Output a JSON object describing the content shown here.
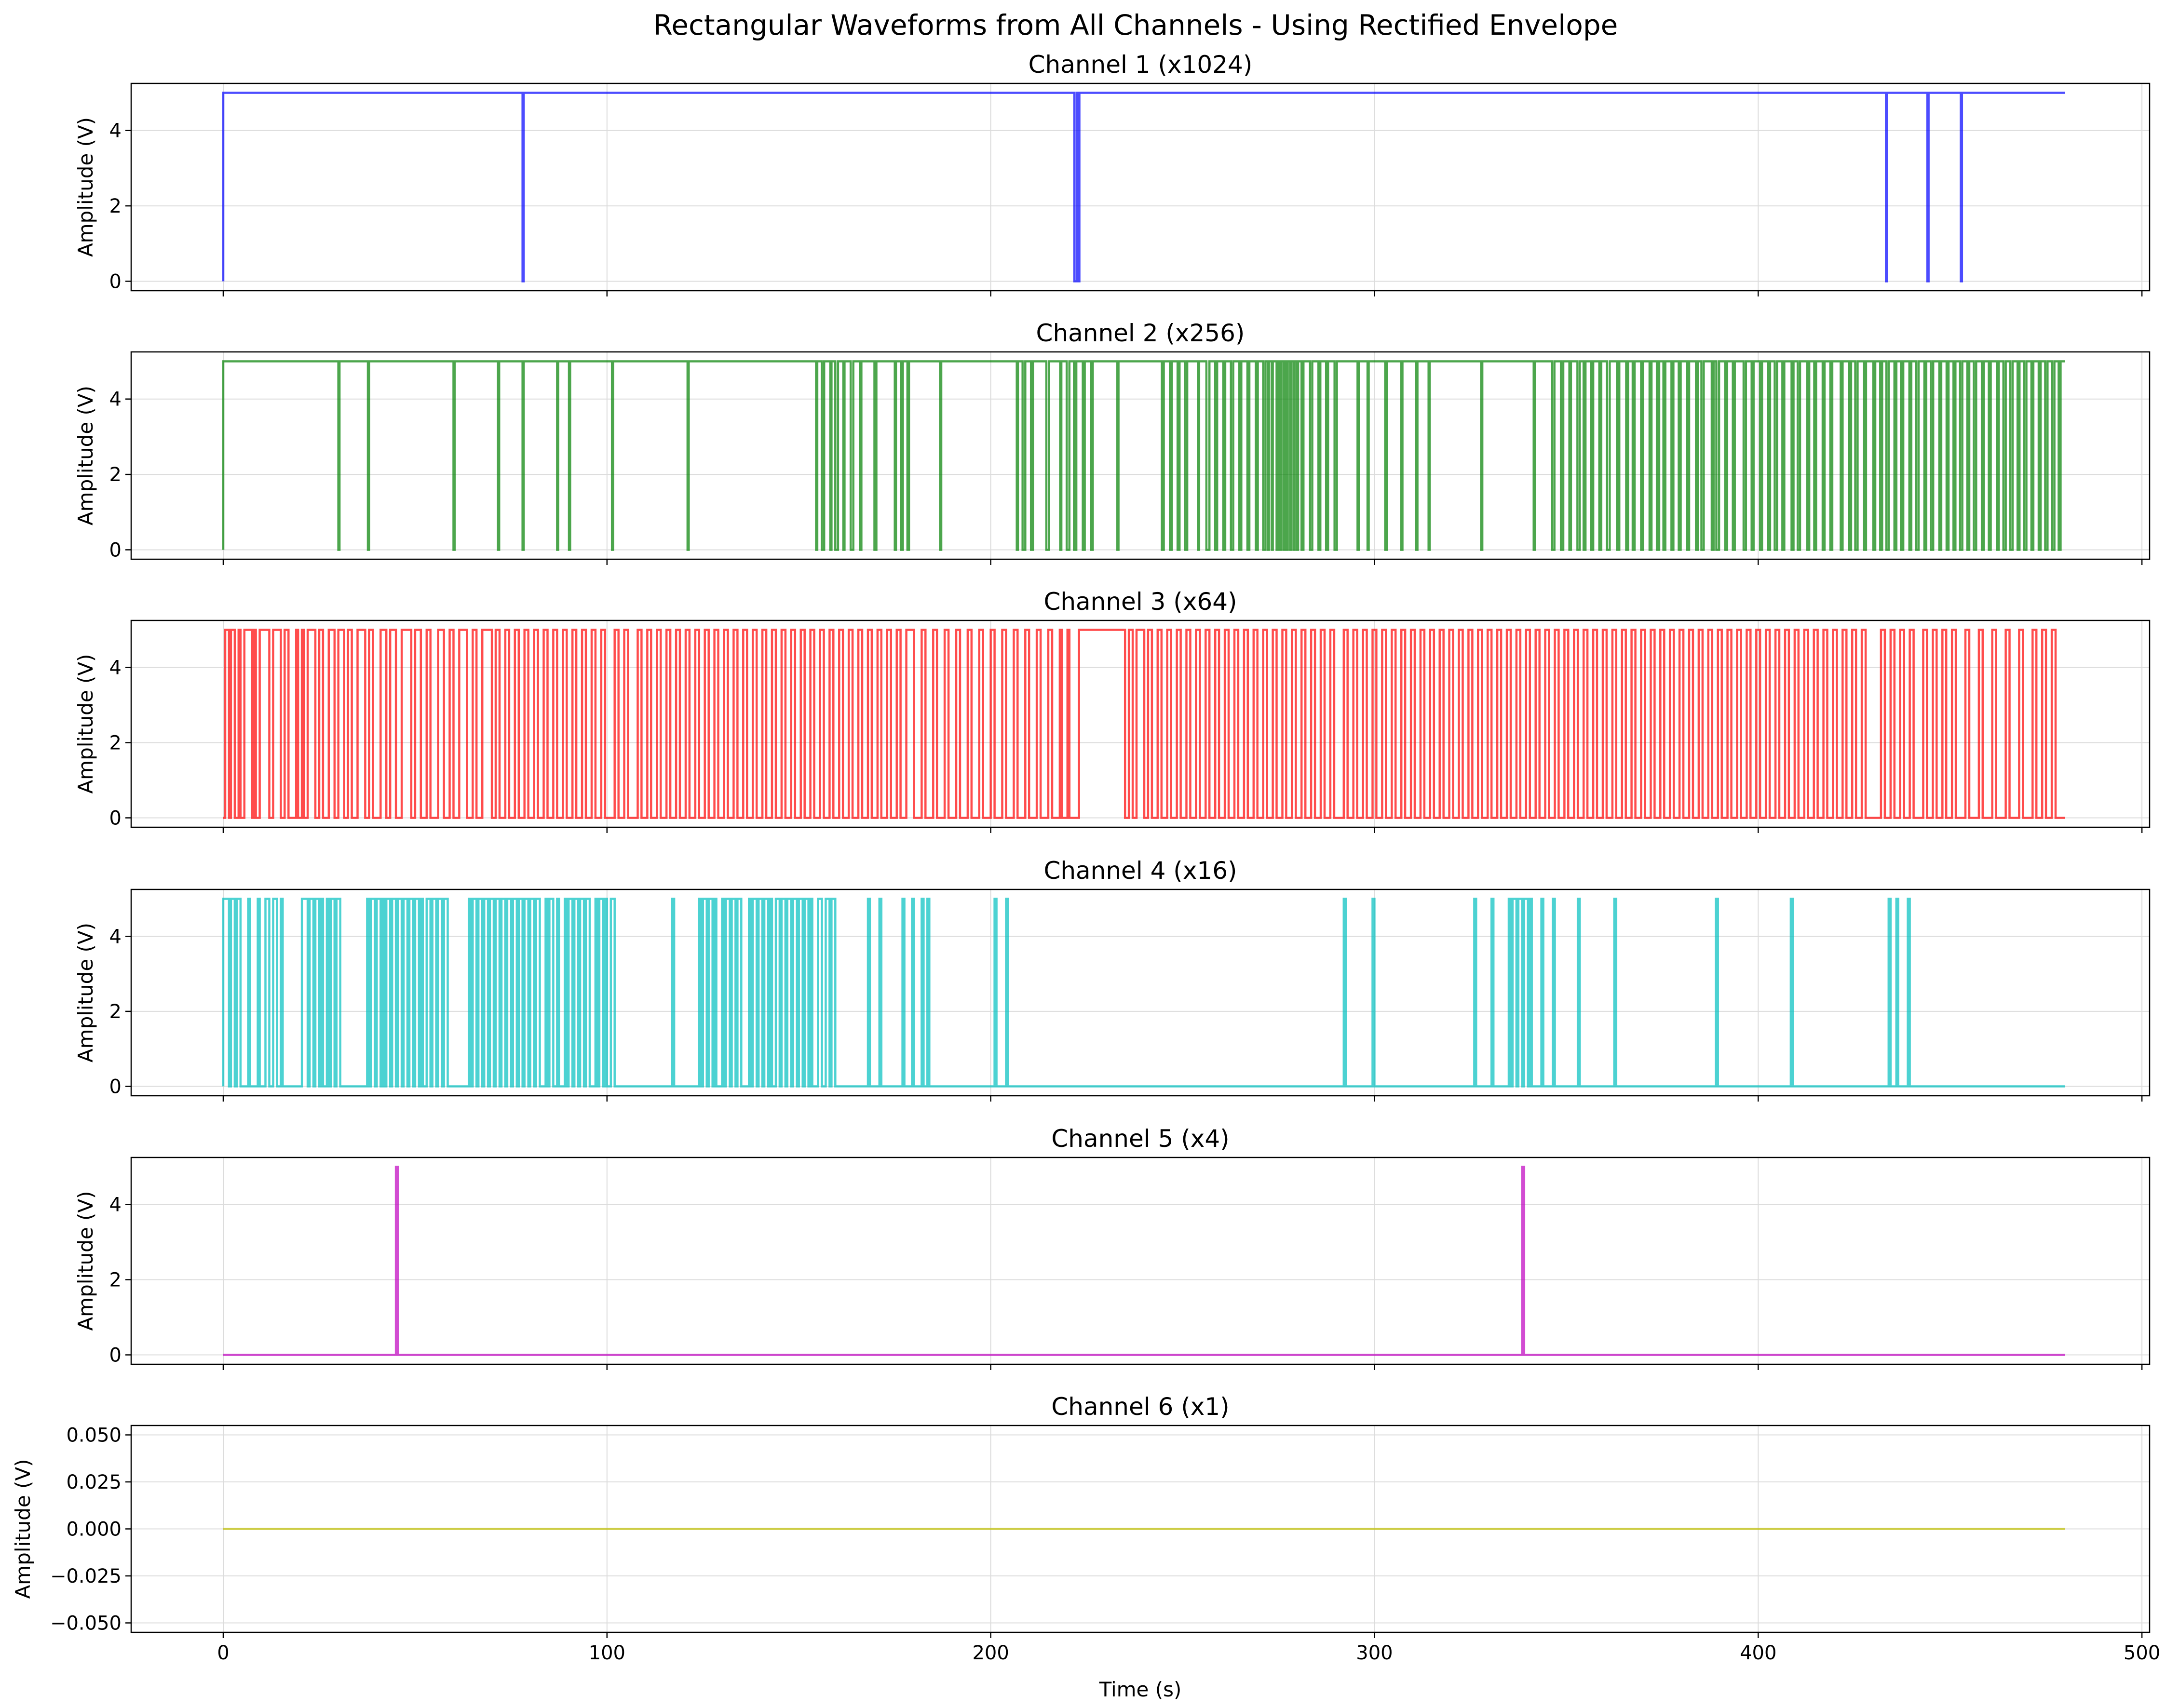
{
  "chart_data": {
    "type": "line",
    "title": "Rectangular Waveforms from All Channels - Using Rectified Envelope",
    "xlabel": "Time (s)",
    "xlim": [
      -24,
      502
    ],
    "x_ticks": [
      0,
      100,
      200,
      300,
      400,
      500
    ],
    "grid": true,
    "subplots": [
      {
        "title": "Channel 1 (x1024)",
        "ylabel": "Amplitude (V)",
        "color": "#0000ff",
        "ylim": [
          -0.25,
          5.25
        ],
        "y_ticks": [
          0,
          2,
          4
        ],
        "y_tick_labels": [
          "0",
          "2",
          "4"
        ],
        "baseline": 0,
        "level": 5,
        "start_state": "high",
        "x_range": [
          0,
          480
        ],
        "transitions": [
          78,
          78.3,
          221.8,
          222.4,
          222.6,
          223.1,
          433.3,
          433.6,
          444.1,
          444.4,
          452.8,
          453.1
        ]
      },
      {
        "title": "Channel 2 (x256)",
        "ylabel": "Amplitude (V)",
        "color": "#008000",
        "ylim": [
          -0.25,
          5.25
        ],
        "y_ticks": [
          0,
          2,
          4
        ],
        "y_tick_labels": [
          "0",
          "2",
          "4"
        ],
        "baseline": 0,
        "level": 5,
        "start_state": "high",
        "x_range": [
          0,
          480
        ],
        "transitions": [
          30,
          30.3,
          37.7,
          38,
          60,
          60.3,
          71.6,
          71.9,
          78,
          78.3,
          87,
          87.3,
          90.1,
          90.4,
          101.3,
          101.6,
          121,
          121.3,
          154.5,
          154.8,
          156,
          156.6,
          158.2,
          158.5,
          159.5,
          160.2,
          161.6,
          161.9,
          163.5,
          164.2,
          166,
          166.3,
          169.7,
          170.2,
          175,
          175.3,
          176.6,
          177.1,
          178.3,
          178.7,
          186.8,
          187.1,
          206.8,
          207.1,
          208.3,
          209,
          210.5,
          211,
          214.5,
          215.2,
          218.1,
          218.4,
          219.8,
          220.5,
          221.7,
          222.3,
          224,
          224.5,
          226.2,
          226.6,
          233,
          233.3,
          244.6,
          245.1,
          246.7,
          247.2,
          248.7,
          249.2,
          250.6,
          251.2,
          254,
          254.3,
          256.2,
          257,
          258.5,
          259,
          260.6,
          261.1,
          262.6,
          263.2,
          264.8,
          265.3,
          266.9,
          267.4,
          269.1,
          269.6,
          271,
          271.6,
          272.2,
          272.5,
          273.2,
          273.5,
          274.5,
          274.8,
          275.4,
          275.7,
          276.3,
          276.6,
          277.1,
          277.4,
          278,
          278.3,
          278.9,
          279.2,
          279.8,
          280.1,
          281,
          281.5,
          283.2,
          283.8,
          285.4,
          285.9,
          287.4,
          287.9,
          289.6,
          290.2,
          295.6,
          295.9,
          298.2,
          298.5,
          302.8,
          303.2,
          307,
          307.3,
          310.9,
          311.2,
          314.1,
          314.4,
          327.8,
          328.1,
          341.5,
          341.8,
          346.3,
          346.9,
          348.6,
          349.2,
          350.8,
          351.2,
          352.9,
          353.5,
          354.5,
          355,
          356.5,
          357,
          358.6,
          359.1,
          360.6,
          361.3,
          363.2,
          363.8,
          365.6,
          366.1,
          367.3,
          367.8,
          369.5,
          370,
          371.7,
          372.2,
          373.6,
          374.2,
          375.3,
          375.8,
          377.4,
          377.9,
          379.3,
          379.8,
          381.5,
          382,
          383.8,
          384.3,
          385.2,
          385.8,
          387.9,
          388.4,
          389.1,
          389.8,
          391.4,
          391.9,
          393.4,
          393.9,
          396.2,
          396.8,
          398.3,
          398.8,
          400.5,
          401,
          402.6,
          403.1,
          404.3,
          404.9,
          406.3,
          406.8,
          408.7,
          409.2,
          410.3,
          410.9,
          412.8,
          413.3,
          414.6,
          415.1,
          416.8,
          417.3,
          418.8,
          419.3,
          421.5,
          422,
          423.7,
          424.2,
          425.3,
          425.9,
          427.6,
          428.1,
          430,
          430.5,
          431.8,
          432.3,
          433.4,
          434,
          435.5,
          436,
          437.2,
          437.8,
          439.4,
          439.9,
          441.2,
          441.8,
          443.3,
          443.8,
          445,
          445.6,
          447.2,
          447.7,
          449.1,
          449.6,
          450.9,
          451.4,
          452.6,
          453.2,
          454.5,
          455,
          456.2,
          456.8,
          458.3,
          458.8,
          460.1,
          460.6,
          462.2,
          462.7,
          463.9,
          464.5,
          465.7,
          466.3,
          467.6,
          468.1,
          469.3,
          469.9,
          471.2,
          471.7,
          473.1,
          473.6,
          474.8,
          475.4,
          476.6,
          477.2,
          478.3,
          478.8
        ]
      },
      {
        "title": "Channel 3 (x64)",
        "ylabel": "Amplitude (V)",
        "color": "#ff0000",
        "ylim": [
          -0.25,
          5.25
        ],
        "y_ticks": [
          0,
          2,
          4
        ],
        "y_tick_labels": [
          "0",
          "2",
          "4"
        ],
        "baseline": 0,
        "level": 5,
        "start_state": "low",
        "x_range": [
          0,
          480
        ],
        "transitions": [
          0.5,
          1.5,
          2,
          3,
          4,
          4.5,
          5.5,
          7.5,
          8,
          8.5,
          9.5,
          12,
          13,
          15,
          16,
          17,
          19,
          19.5,
          20.5,
          21,
          22,
          24,
          25,
          26,
          27.5,
          29,
          30,
          31.5,
          32.5,
          33.5,
          35,
          37,
          38,
          39,
          41,
          42.5,
          43.5,
          45,
          46.5,
          49,
          50,
          51.5,
          53,
          54,
          56,
          57.5,
          59,
          60,
          61.5,
          63.5,
          65,
          66,
          67.5,
          70,
          71,
          72,
          73.5,
          74.5,
          76,
          77,
          78.5,
          79.5,
          81,
          82,
          83.5,
          84.5,
          86,
          87,
          88.5,
          89.5,
          91,
          92,
          93.5,
          94.5,
          96,
          97,
          98.5,
          99.5,
          102,
          103,
          104.5,
          105.5,
          108,
          109,
          110.5,
          111.5,
          113,
          114,
          115.5,
          116.5,
          118,
          119,
          120.5,
          121.5,
          123,
          124,
          125.5,
          126.5,
          128,
          129,
          130.5,
          131.5,
          133,
          134,
          135.5,
          136.5,
          138,
          139,
          140.5,
          141.5,
          143,
          144,
          145.5,
          146.5,
          148,
          149,
          150.5,
          151.5,
          153,
          154,
          155.5,
          156.5,
          158,
          159,
          160.5,
          161.5,
          163,
          164,
          165.5,
          166.5,
          168,
          169,
          170.5,
          171.5,
          173,
          174,
          175.5,
          176.5,
          178,
          180,
          182,
          183,
          185,
          186,
          188,
          189,
          191,
          192,
          194,
          195,
          197,
          198,
          200,
          201,
          203,
          204,
          206,
          207,
          209,
          210,
          212,
          213,
          215,
          216,
          218,
          218.5,
          220,
          220.5,
          223,
          235,
          236,
          237,
          238,
          240,
          241,
          242,
          243.5,
          244.5,
          246,
          247,
          248.5,
          249.5,
          251,
          252,
          253.5,
          254.5,
          256,
          257,
          258.5,
          259.5,
          261,
          262,
          263.5,
          264.5,
          266,
          267,
          268.5,
          269.5,
          271,
          272,
          273.5,
          274.5,
          276,
          277,
          278.5,
          279.5,
          281,
          282,
          283.5,
          284.5,
          286,
          287,
          288.5,
          289.5,
          292,
          293,
          294.5,
          295.5,
          297,
          298,
          299.5,
          300.5,
          302,
          303,
          304.5,
          305.5,
          307,
          308,
          309.5,
          310.5,
          312,
          313,
          314.5,
          315.5,
          317,
          318,
          319.5,
          320.5,
          322,
          323,
          324.5,
          325.5,
          327,
          328,
          329.5,
          330.5,
          332,
          333,
          334.5,
          335.5,
          337,
          338,
          339.5,
          340.5,
          342,
          343,
          344.5,
          345.5,
          347,
          348,
          349.5,
          350.5,
          352,
          353,
          354.5,
          355.5,
          357,
          358,
          359.5,
          360.5,
          362,
          363,
          364.5,
          365.5,
          367,
          368,
          369.5,
          370.5,
          372,
          373,
          374.5,
          375.5,
          377,
          378,
          379.5,
          380.5,
          382,
          383,
          384.5,
          385.5,
          387,
          388,
          389.5,
          390.5,
          392,
          393,
          394.5,
          395.5,
          397,
          398,
          399.5,
          400.5,
          402,
          403,
          404.5,
          405.5,
          407,
          408,
          409.5,
          410.5,
          412,
          413,
          414.5,
          415.5,
          417,
          418,
          419.5,
          420.5,
          422,
          423,
          424.5,
          425.5,
          427,
          428,
          432,
          433,
          434.5,
          435.5,
          437,
          438,
          439.5,
          440.5,
          443,
          444,
          445.5,
          446.5,
          448,
          449,
          450.5,
          451.5,
          454,
          455,
          457.5,
          458.5,
          461,
          462,
          464.5,
          465.5,
          468,
          469,
          471.5,
          472.5,
          474,
          475,
          476.5,
          477.5
        ]
      },
      {
        "title": "Channel 4 (x16)",
        "ylabel": "Amplitude (V)",
        "color": "#00bfbf",
        "ylim": [
          -0.25,
          5.25
        ],
        "y_ticks": [
          0,
          2,
          4
        ],
        "y_tick_labels": [
          "0",
          "2",
          "4"
        ],
        "baseline": 0,
        "level": 5,
        "start_state": "low",
        "x_range": [
          0,
          480
        ],
        "transitions": [
          0,
          1.5,
          2,
          3,
          3.5,
          4.5,
          6.5,
          7,
          9,
          9.5,
          11,
          12,
          13,
          14,
          15,
          15.5,
          20.5,
          22,
          22.5,
          23.5,
          24,
          25,
          25.5,
          26,
          27,
          27.5,
          28,
          29,
          29.5,
          30.5,
          37.5,
          38,
          38.5,
          39.5,
          40,
          41,
          41.5,
          42,
          42.5,
          43.5,
          44,
          45,
          45.5,
          46.5,
          47,
          48,
          48.5,
          49.5,
          50,
          51,
          51.5,
          52,
          53,
          54,
          54.5,
          55.5,
          56,
          57,
          57.5,
          58.5,
          64,
          64.5,
          65,
          66,
          66.5,
          67.5,
          68,
          69,
          69.5,
          70.5,
          71,
          72,
          72.5,
          73.5,
          74,
          75,
          75.5,
          76.5,
          77,
          78,
          78.5,
          79.5,
          80,
          81,
          81.5,
          82.5,
          84,
          84.5,
          85,
          86,
          87,
          87.5,
          89,
          89.5,
          90,
          91,
          91.5,
          92.5,
          93,
          94,
          94.5,
          95.5,
          97,
          97.5,
          98,
          99,
          99.5,
          100,
          101,
          102,
          117,
          117.5,
          124,
          124.5,
          125,
          126,
          126.5,
          127.5,
          128,
          128.5,
          130,
          130.5,
          131,
          132,
          132.5,
          133.5,
          134,
          135,
          137,
          137.5,
          138,
          139,
          139.5,
          140.5,
          141,
          142,
          142.5,
          143,
          144,
          145,
          145.5,
          146.5,
          147,
          148,
          148.5,
          149.5,
          150,
          151,
          151.5,
          152.5,
          153,
          153.5,
          155,
          156,
          157,
          158,
          158.5,
          159.5,
          168,
          168.5,
          171,
          171.5,
          177,
          177.5,
          179.5,
          180,
          182,
          182.5,
          183.5,
          184,
          201,
          201.5,
          204,
          204.5,
          292,
          292.5,
          299.5,
          300,
          326,
          326.5,
          330.5,
          331,
          335,
          335.5,
          336,
          337,
          337.5,
          338.5,
          339,
          340,
          340.5,
          341,
          343.5,
          344,
          346.5,
          347,
          353,
          353.5,
          362.5,
          363,
          389,
          389.5,
          408.5,
          409,
          434,
          434.5,
          436,
          436.5,
          439,
          439.5
        ]
      },
      {
        "title": "Channel 5 (x4)",
        "ylabel": "Amplitude (V)",
        "color": "#bf00bf",
        "ylim": [
          -0.25,
          5.25
        ],
        "y_ticks": [
          0,
          2,
          4
        ],
        "y_tick_labels": [
          "0",
          "2",
          "4"
        ],
        "baseline": 0,
        "level": 5,
        "start_state": "low",
        "x_range": [
          0,
          480
        ],
        "transitions": [
          45,
          45.5,
          338.5,
          339
        ]
      },
      {
        "title": "Channel 6 (x1)",
        "ylabel": "Amplitude (V)",
        "color": "#bfbf00",
        "ylim": [
          -0.055,
          0.055
        ],
        "y_ticks": [
          -0.05,
          -0.025,
          0,
          0.025,
          0.05
        ],
        "y_tick_labels": [
          "−0.050",
          "−0.025",
          "0.000",
          "0.025",
          "0.050"
        ],
        "baseline": 0,
        "level": 0,
        "start_state": "low",
        "x_range": [
          0,
          480
        ],
        "transitions": []
      }
    ]
  }
}
